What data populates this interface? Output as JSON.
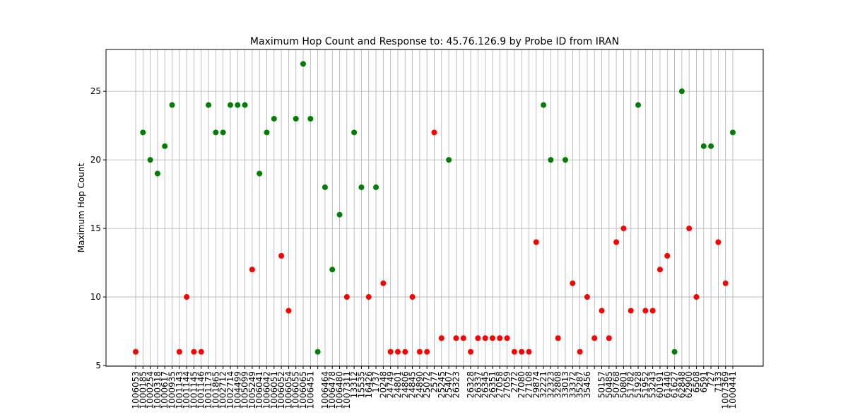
{
  "chart_data": {
    "type": "scatter",
    "title": "Maximum Hop Count and Response to: 45.76.126.9 by Probe ID from IRAN",
    "y_label": "Maximum Hop Count",
    "categories": [
      "1006053",
      "1000185",
      "1000254",
      "1000318",
      "1000617",
      "1000935",
      "1001143",
      "1001144",
      "1001145",
      "1001146",
      "1001173",
      "1001865",
      "1002712",
      "1002714",
      "1004499",
      "1005099",
      "1005249",
      "1006041",
      "1006042",
      "1006051",
      "1006052",
      "1006054",
      "1006055",
      "1006065",
      "1006451",
      null,
      "1006464",
      "1006478",
      "1006480",
      "1007311",
      "13312",
      "15535",
      "16426",
      "1737",
      "20248",
      "24749",
      "24801",
      "24806",
      "24845",
      "24890",
      "25072",
      "2577",
      "25245",
      "25407",
      "26323",
      null,
      "26328",
      "26337",
      "26345",
      "26351",
      "27058",
      "27059",
      "2772",
      "27080",
      "27108",
      "29874",
      "32221",
      "32323",
      "32808",
      "33013",
      "33372",
      "35287",
      "35456",
      null,
      "50157",
      "50485",
      "50768",
      "50801",
      "51782",
      "51928",
      "51952",
      "53243",
      "60191",
      "61440",
      "61627",
      "62848",
      "62900",
      "6508",
      "6591",
      "727",
      "7133",
      "1007369",
      "1000441"
    ],
    "values": [
      6,
      22,
      20,
      19,
      21,
      24,
      6,
      10,
      6,
      6,
      24,
      22,
      22,
      24,
      24,
      24,
      12,
      19,
      22,
      23,
      13,
      9,
      23,
      27,
      23,
      6,
      18,
      12,
      16,
      10,
      22,
      18,
      10,
      18,
      11,
      6,
      6,
      6,
      10,
      6,
      6,
      22,
      7,
      20,
      7,
      7,
      6,
      7,
      7,
      7,
      7,
      7,
      6,
      6,
      6,
      14,
      24,
      20,
      7,
      20,
      11,
      6,
      10,
      7,
      9,
      7,
      14,
      15,
      9,
      24,
      9,
      9,
      12,
      13,
      6,
      25,
      15,
      10,
      21,
      21,
      14,
      11,
      22
    ],
    "colors": [
      "red",
      "green",
      "green",
      "green",
      "green",
      "green",
      "red",
      "red",
      "red",
      "red",
      "green",
      "green",
      "green",
      "green",
      "green",
      "green",
      "red",
      "green",
      "green",
      "green",
      "red",
      "red",
      "green",
      "green",
      "green",
      "green",
      "green",
      "green",
      "green",
      "red",
      "green",
      "green",
      "red",
      "green",
      "red",
      "red",
      "red",
      "red",
      "red",
      "red",
      "red",
      "red",
      "red",
      "green",
      "red",
      "red",
      "red",
      "red",
      "red",
      "red",
      "red",
      "red",
      "red",
      "red",
      "red",
      "red",
      "green",
      "green",
      "red",
      "green",
      "red",
      "red",
      "red",
      "red",
      "red",
      "red",
      "red",
      "red",
      "red",
      "green",
      "red",
      "red",
      "red",
      "red",
      "green",
      "green",
      "red",
      "red",
      "green",
      "green",
      "red",
      "red",
      "green"
    ],
    "ylim": [
      4.95,
      28.05
    ],
    "yticks": [
      5,
      10,
      15,
      20,
      25
    ],
    "grid": true
  }
}
